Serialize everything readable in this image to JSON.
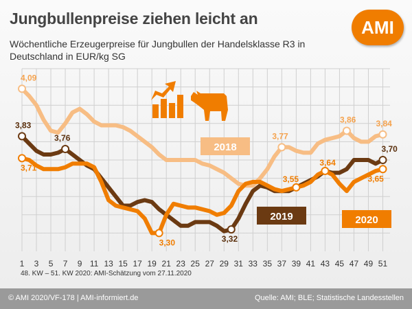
{
  "header": {
    "title": "Jungbullenpreise ziehen leicht an",
    "subtitle": "Wöchentliche Erzeugerpreise für Jungbullen der Handelsklasse R3 in Deutschland in EUR/kg SG",
    "logo": "AMI"
  },
  "footnote": "48. KW – 51. KW 2020: AMI-Schätzung vom 27.11.2020",
  "footer": {
    "left": "© AMI 2020/VF-178 | AMI-informiert.de",
    "right": "Quelle: AMI; BLE; Statistische Landesstellen"
  },
  "icons": [
    "rising-arrow-chart-icon",
    "bull-icon"
  ],
  "colors": {
    "y2018": "#f7bd84",
    "y2019": "#6b3a12",
    "y2020": "#f07d00",
    "footer": "#9a9a9a"
  },
  "chart_data": {
    "type": "line",
    "x_ticks": [
      1,
      3,
      5,
      7,
      9,
      11,
      13,
      15,
      17,
      19,
      21,
      23,
      25,
      27,
      29,
      31,
      33,
      35,
      37,
      39,
      41,
      43,
      45,
      47,
      49,
      51
    ],
    "xlim": [
      1,
      52
    ],
    "ylim": [
      3.2,
      4.2
    ],
    "grid": true,
    "legend": "inline labels",
    "series": [
      {
        "name": "2018",
        "color": "#f7bd84",
        "points": [
          [
            1,
            4.09
          ],
          [
            2,
            4.05
          ],
          [
            3,
            4.0
          ],
          [
            4,
            3.92
          ],
          [
            5,
            3.86
          ],
          [
            6,
            3.85
          ],
          [
            7,
            3.9
          ],
          [
            8,
            3.96
          ],
          [
            9,
            3.98
          ],
          [
            10,
            3.95
          ],
          [
            11,
            3.91
          ],
          [
            12,
            3.89
          ],
          [
            13,
            3.89
          ],
          [
            14,
            3.89
          ],
          [
            15,
            3.88
          ],
          [
            16,
            3.86
          ],
          [
            17,
            3.83
          ],
          [
            18,
            3.8
          ],
          [
            19,
            3.77
          ],
          [
            20,
            3.73
          ],
          [
            21,
            3.7
          ],
          [
            22,
            3.7
          ],
          [
            23,
            3.7
          ],
          [
            24,
            3.7
          ],
          [
            25,
            3.7
          ],
          [
            26,
            3.68
          ],
          [
            27,
            3.67
          ],
          [
            28,
            3.65
          ],
          [
            29,
            3.63
          ],
          [
            30,
            3.6
          ],
          [
            31,
            3.57
          ],
          [
            32,
            3.56
          ],
          [
            33,
            3.56
          ],
          [
            34,
            3.6
          ],
          [
            35,
            3.65
          ],
          [
            36,
            3.72
          ],
          [
            37,
            3.77
          ],
          [
            38,
            3.77
          ],
          [
            39,
            3.75
          ],
          [
            40,
            3.74
          ],
          [
            41,
            3.74
          ],
          [
            42,
            3.79
          ],
          [
            43,
            3.81
          ],
          [
            44,
            3.82
          ],
          [
            45,
            3.83
          ],
          [
            46,
            3.86
          ],
          [
            47,
            3.82
          ],
          [
            48,
            3.8
          ],
          [
            49,
            3.8
          ],
          [
            50,
            3.83
          ],
          [
            51,
            3.84
          ]
        ]
      },
      {
        "name": "2019",
        "color": "#6b3a12",
        "points": [
          [
            1,
            3.83
          ],
          [
            2,
            3.79
          ],
          [
            3,
            3.75
          ],
          [
            4,
            3.73
          ],
          [
            5,
            3.73
          ],
          [
            6,
            3.74
          ],
          [
            7,
            3.76
          ],
          [
            8,
            3.73
          ],
          [
            9,
            3.7
          ],
          [
            10,
            3.67
          ],
          [
            11,
            3.65
          ],
          [
            12,
            3.6
          ],
          [
            13,
            3.55
          ],
          [
            14,
            3.5
          ],
          [
            15,
            3.45
          ],
          [
            16,
            3.45
          ],
          [
            17,
            3.47
          ],
          [
            18,
            3.48
          ],
          [
            19,
            3.47
          ],
          [
            20,
            3.43
          ],
          [
            21,
            3.4
          ],
          [
            22,
            3.37
          ],
          [
            23,
            3.34
          ],
          [
            24,
            3.34
          ],
          [
            25,
            3.36
          ],
          [
            26,
            3.36
          ],
          [
            27,
            3.36
          ],
          [
            28,
            3.34
          ],
          [
            29,
            3.31
          ],
          [
            30,
            3.32
          ],
          [
            31,
            3.38
          ],
          [
            32,
            3.46
          ],
          [
            33,
            3.53
          ],
          [
            34,
            3.56
          ],
          [
            35,
            3.55
          ],
          [
            36,
            3.53
          ],
          [
            37,
            3.53
          ],
          [
            38,
            3.53
          ],
          [
            39,
            3.55
          ],
          [
            40,
            3.57
          ],
          [
            41,
            3.59
          ],
          [
            42,
            3.61
          ],
          [
            43,
            3.64
          ],
          [
            44,
            3.63
          ],
          [
            45,
            3.63
          ],
          [
            46,
            3.65
          ],
          [
            47,
            3.7
          ],
          [
            48,
            3.7
          ],
          [
            49,
            3.7
          ],
          [
            50,
            3.68
          ],
          [
            51,
            3.7
          ]
        ]
      },
      {
        "name": "2020",
        "color": "#f07d00",
        "points": [
          [
            1,
            3.71
          ],
          [
            2,
            3.7
          ],
          [
            3,
            3.67
          ],
          [
            4,
            3.65
          ],
          [
            5,
            3.65
          ],
          [
            6,
            3.65
          ],
          [
            7,
            3.66
          ],
          [
            8,
            3.68
          ],
          [
            9,
            3.68
          ],
          [
            10,
            3.68
          ],
          [
            11,
            3.66
          ],
          [
            12,
            3.58
          ],
          [
            13,
            3.48
          ],
          [
            14,
            3.45
          ],
          [
            15,
            3.44
          ],
          [
            16,
            3.43
          ],
          [
            17,
            3.42
          ],
          [
            18,
            3.38
          ],
          [
            19,
            3.3
          ],
          [
            20,
            3.3
          ],
          [
            21,
            3.4
          ],
          [
            22,
            3.46
          ],
          [
            23,
            3.45
          ],
          [
            24,
            3.44
          ],
          [
            25,
            3.44
          ],
          [
            26,
            3.43
          ],
          [
            27,
            3.42
          ],
          [
            28,
            3.4
          ],
          [
            29,
            3.41
          ],
          [
            30,
            3.45
          ],
          [
            31,
            3.53
          ],
          [
            32,
            3.57
          ],
          [
            33,
            3.58
          ],
          [
            34,
            3.58
          ],
          [
            35,
            3.56
          ],
          [
            36,
            3.54
          ],
          [
            37,
            3.53
          ],
          [
            38,
            3.54
          ],
          [
            39,
            3.55
          ],
          [
            40,
            3.56
          ],
          [
            41,
            3.58
          ],
          [
            42,
            3.62
          ],
          [
            43,
            3.64
          ],
          [
            44,
            3.62
          ],
          [
            45,
            3.57
          ],
          [
            46,
            3.53
          ],
          [
            47,
            3.58
          ],
          [
            48,
            3.6
          ],
          [
            49,
            3.62
          ],
          [
            50,
            3.64
          ],
          [
            51,
            3.65
          ]
        ]
      }
    ],
    "annotations": [
      {
        "series": "2018",
        "x": 1,
        "y": 4.09,
        "text": "4,09"
      },
      {
        "series": "2018",
        "x": 37,
        "y": 3.77,
        "text": "3,77"
      },
      {
        "series": "2018",
        "x": 46,
        "y": 3.86,
        "text": "3,86"
      },
      {
        "series": "2018",
        "x": 51,
        "y": 3.84,
        "text": "3,84"
      },
      {
        "series": "2019",
        "x": 1,
        "y": 3.83,
        "text": "3,83"
      },
      {
        "series": "2019",
        "x": 7,
        "y": 3.76,
        "text": "3,76"
      },
      {
        "series": "2019",
        "x": 30,
        "y": 3.32,
        "text": "3,32"
      },
      {
        "series": "2019",
        "x": 51,
        "y": 3.7,
        "text": "3,70"
      },
      {
        "series": "2020",
        "x": 1,
        "y": 3.71,
        "text": "3,71"
      },
      {
        "series": "2020",
        "x": 20,
        "y": 3.3,
        "text": "3,30"
      },
      {
        "series": "2020",
        "x": 39,
        "y": 3.55,
        "text": "3,55"
      },
      {
        "series": "2020",
        "x": 43,
        "y": 3.64,
        "text": "3,64"
      },
      {
        "series": "2020",
        "x": 51,
        "y": 3.65,
        "text": "3,65"
      }
    ],
    "series_labels": [
      "2018",
      "2019",
      "2020"
    ]
  }
}
